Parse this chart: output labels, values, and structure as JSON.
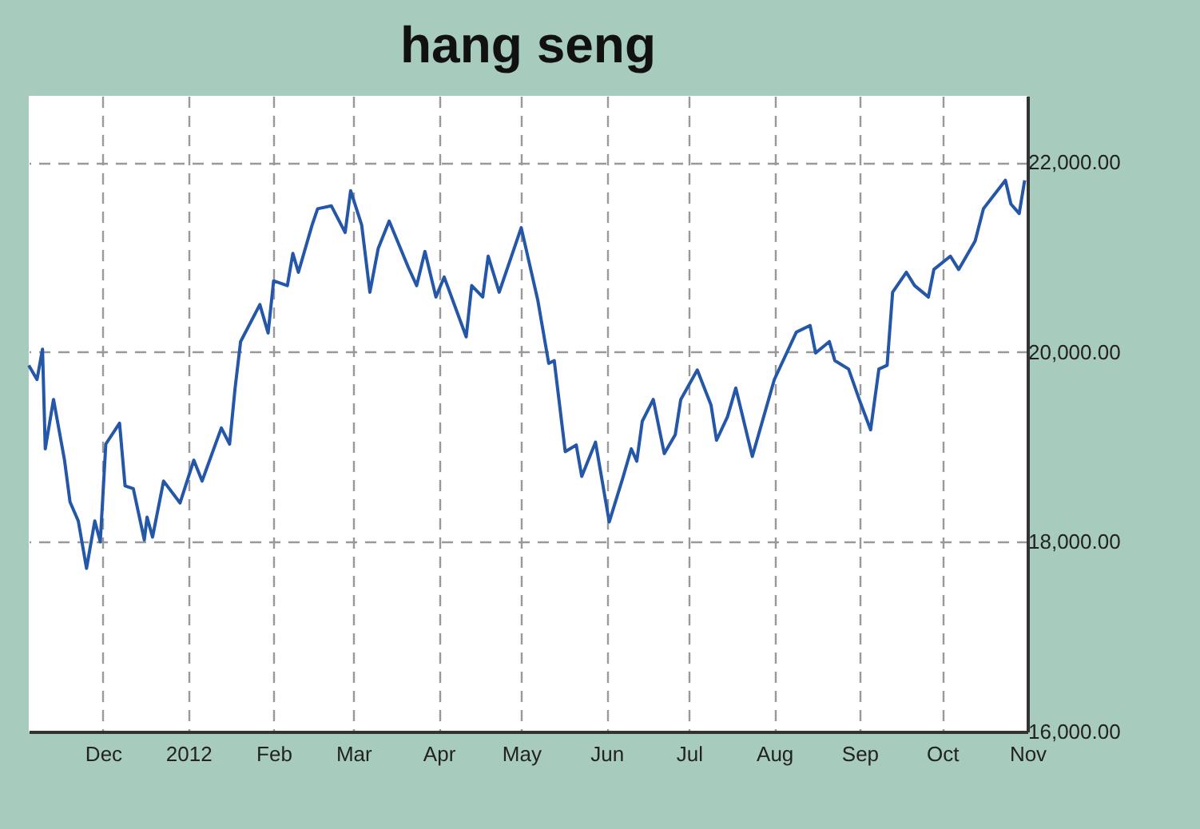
{
  "chart_data": {
    "type": "line",
    "title": "hang seng",
    "x": [
      "2011-11-04",
      "2011-11-07",
      "2011-11-09",
      "2011-11-10",
      "2011-11-13",
      "2011-11-17",
      "2011-11-19",
      "2011-11-22",
      "2011-11-25",
      "2011-11-28",
      "2011-11-30",
      "2011-12-02",
      "2011-12-07",
      "2011-12-09",
      "2011-12-12",
      "2011-12-16",
      "2011-12-17",
      "2011-12-19",
      "2011-12-23",
      "2011-12-29",
      "2012-01-03",
      "2012-01-06",
      "2012-01-13",
      "2012-01-16",
      "2012-01-18",
      "2012-01-20",
      "2012-01-27",
      "2012-01-30",
      "2012-02-01",
      "2012-02-06",
      "2012-02-08",
      "2012-02-10",
      "2012-02-15",
      "2012-02-17",
      "2012-02-22",
      "2012-02-27",
      "2012-02-29",
      "2012-03-04",
      "2012-03-07",
      "2012-03-10",
      "2012-03-14",
      "2012-03-21",
      "2012-03-24",
      "2012-03-27",
      "2012-03-31",
      "2012-04-03",
      "2012-04-11",
      "2012-04-13",
      "2012-04-17",
      "2012-04-19",
      "2012-04-23",
      "2012-05-01",
      "2012-05-07",
      "2012-05-11",
      "2012-05-13",
      "2012-05-17",
      "2012-05-21",
      "2012-05-23",
      "2012-05-28",
      "2012-06-02",
      "2012-06-07",
      "2012-06-10",
      "2012-06-12",
      "2012-06-14",
      "2012-06-18",
      "2012-06-22",
      "2012-06-26",
      "2012-06-28",
      "2012-07-04",
      "2012-07-09",
      "2012-07-11",
      "2012-07-15",
      "2012-07-18",
      "2012-07-24",
      "2012-08-01",
      "2012-08-09",
      "2012-08-14",
      "2012-08-16",
      "2012-08-21",
      "2012-08-23",
      "2012-08-28",
      "2012-09-01",
      "2012-09-05",
      "2012-09-08",
      "2012-09-11",
      "2012-09-13",
      "2012-09-18",
      "2012-09-21",
      "2012-09-26",
      "2012-09-28",
      "2012-10-04",
      "2012-10-07",
      "2012-10-13",
      "2012-10-16",
      "2012-10-24",
      "2012-10-26",
      "2012-10-29",
      "2012-10-31"
    ],
    "series": [
      {
        "color": "#2457a8",
        "values": [
          19860,
          19710,
          20030,
          18980,
          19500,
          18860,
          18420,
          18220,
          17720,
          18220,
          18000,
          19030,
          19250,
          18590,
          18560,
          18020,
          18260,
          18050,
          18640,
          18410,
          18860,
          18640,
          19200,
          19030,
          19620,
          20110,
          20500,
          20200,
          20750,
          20700,
          21040,
          20840,
          21340,
          21510,
          21540,
          21260,
          21700,
          21340,
          20630,
          21090,
          21380,
          20890,
          20700,
          21060,
          20580,
          20790,
          20160,
          20700,
          20580,
          21010,
          20630,
          21310,
          20550,
          19880,
          19910,
          18950,
          19020,
          18690,
          19050,
          18210,
          18680,
          18980,
          18850,
          19270,
          19500,
          18930,
          19130,
          19500,
          19810,
          19440,
          19070,
          19320,
          19620,
          18900,
          19710,
          20210,
          20280,
          19990,
          20110,
          19910,
          19820,
          19490,
          19180,
          19820,
          19860,
          20630,
          20840,
          20700,
          20580,
          20870,
          21010,
          20870,
          21170,
          21510,
          21810,
          21560,
          21460,
          21810
        ]
      }
    ],
    "xlim": [
      "2011-11-04",
      "2012-11-01"
    ],
    "xticks": [
      {
        "value": "2011-12-01",
        "label": "Dec"
      },
      {
        "value": "2012-01-01",
        "label": "2012"
      },
      {
        "value": "2012-02-01",
        "label": "Feb"
      },
      {
        "value": "2012-03-01",
        "label": "Mar"
      },
      {
        "value": "2012-04-01",
        "label": "Apr"
      },
      {
        "value": "2012-05-01",
        "label": "May"
      },
      {
        "value": "2012-06-01",
        "label": "Jun"
      },
      {
        "value": "2012-07-01",
        "label": "Jul"
      },
      {
        "value": "2012-08-01",
        "label": "Aug"
      },
      {
        "value": "2012-09-01",
        "label": "Sep"
      },
      {
        "value": "2012-10-01",
        "label": "Oct"
      },
      {
        "value": "2012-11-01",
        "label": "Nov"
      }
    ],
    "ylim": [
      16000,
      22700
    ],
    "yticks": [
      {
        "value": 16000,
        "label": "16,000.00"
      },
      {
        "value": 18000,
        "label": "18,000.00"
      },
      {
        "value": 20000,
        "label": "20,000.00"
      },
      {
        "value": 22000,
        "label": "22,000.00"
      }
    ],
    "grid": true,
    "marker": "none",
    "line_style": "solid"
  }
}
